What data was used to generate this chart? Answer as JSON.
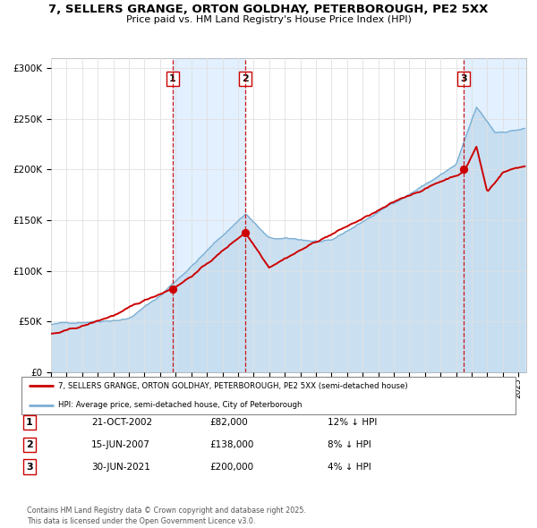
{
  "title_line1": "7, SELLERS GRANGE, ORTON GOLDHAY, PETERBOROUGH, PE2 5XX",
  "title_line2": "Price paid vs. HM Land Registry's House Price Index (HPI)",
  "legend_label_red": "7, SELLERS GRANGE, ORTON GOLDHAY, PETERBOROUGH, PE2 5XX (semi-detached house)",
  "legend_label_blue": "HPI: Average price, semi-detached house, City of Peterborough",
  "sale1_date": "21-OCT-2002",
  "sale1_price": 82000,
  "sale1_hpi": "12% ↓ HPI",
  "sale1_year": 2002.8,
  "sale2_date": "15-JUN-2007",
  "sale2_price": 138000,
  "sale2_hpi": "8% ↓ HPI",
  "sale2_year": 2007.46,
  "sale3_date": "30-JUN-2021",
  "sale3_price": 200000,
  "sale3_hpi": "4% ↓ HPI",
  "sale3_year": 2021.5,
  "ylim_max": 310000,
  "xmin": 1995.0,
  "xmax": 2025.5,
  "red_color": "#cc0000",
  "blue_color": "#7aafd4",
  "blue_fill_color": "#c5ddf0",
  "bg_shade_color": "#ddeeff",
  "footnote": "Contains HM Land Registry data © Crown copyright and database right 2025.\nThis data is licensed under the Open Government Licence v3.0."
}
